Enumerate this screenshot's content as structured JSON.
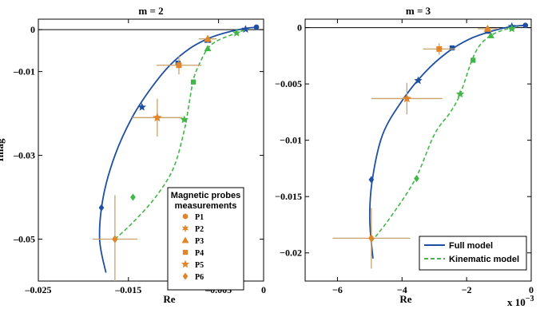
{
  "colors": {
    "full": "#1f4fa3",
    "kinematic": "#43b649",
    "probe": "#e0862a",
    "errorbar": "#c9a36a"
  },
  "chart_data": [
    {
      "type": "line",
      "title": "m = 2",
      "xlabel": "Re",
      "ylabel": "Imag",
      "xlim": [
        -0.025,
        0.0
      ],
      "ylim": [
        -0.06,
        0.0025
      ],
      "xticks": [
        -0.025,
        -0.015,
        -0.005,
        0
      ],
      "xtick_labels": [
        "–0.025",
        "–0.015",
        "–0.005",
        "0"
      ],
      "yticks": [
        0,
        -0.01,
        -0.03,
        -0.05
      ],
      "ytick_labels": [
        "0",
        "–0.01",
        "–0.03",
        "–0.05"
      ],
      "series": [
        {
          "name": "Full model",
          "style": "solid",
          "x": [
            -0.0175,
            -0.0182,
            -0.0178,
            -0.0165,
            -0.0146,
            -0.0125,
            -0.0104,
            -0.0082,
            -0.006,
            -0.0038,
            -0.002,
            -0.0007
          ],
          "y": [
            -0.058,
            -0.05,
            -0.04,
            -0.03,
            -0.021,
            -0.014,
            -0.0085,
            -0.0045,
            -0.002,
            -0.0005,
            0.0003,
            0.0006
          ],
          "markers": [
            {
              "x": -0.018,
              "y": -0.0425,
              "shape": "diamond"
            },
            {
              "x": -0.0135,
              "y": -0.0185,
              "shape": "star"
            },
            {
              "x": -0.0095,
              "y": -0.008,
              "shape": "square"
            },
            {
              "x": -0.0062,
              "y": -0.0025,
              "shape": "triangle"
            },
            {
              "x": -0.002,
              "y": 0.0001,
              "shape": "star"
            },
            {
              "x": -0.0008,
              "y": 0.0006,
              "shape": "circle"
            }
          ]
        },
        {
          "name": "Kinematic model",
          "style": "dashed",
          "x": [
            -0.0165,
            -0.0145,
            -0.012,
            -0.01,
            -0.0088,
            -0.0083,
            -0.0078,
            -0.0072,
            -0.0062,
            -0.005,
            -0.003,
            -0.0018
          ],
          "y": [
            -0.05,
            -0.046,
            -0.04,
            -0.033,
            -0.024,
            -0.018,
            -0.012,
            -0.0085,
            -0.0045,
            -0.0025,
            -0.0008,
            0.0001
          ],
          "markers": [
            {
              "x": -0.0145,
              "y": -0.04,
              "shape": "diamond"
            },
            {
              "x": -0.0088,
              "y": -0.0215,
              "shape": "star"
            },
            {
              "x": -0.0078,
              "y": -0.0125,
              "shape": "square"
            },
            {
              "x": -0.0062,
              "y": -0.0045,
              "shape": "triangle"
            },
            {
              "x": -0.003,
              "y": -0.0008,
              "shape": "star"
            }
          ]
        },
        {
          "name": "Magnetic probes measurements",
          "style": "points",
          "points": [
            {
              "label": "P6",
              "x": -0.0165,
              "y": -0.05,
              "xerr": 0.0025,
              "yerr": 0.0105,
              "shape": "diamond"
            },
            {
              "label": "P5",
              "x": -0.0118,
              "y": -0.021,
              "xerr": 0.0028,
              "yerr": 0.0045,
              "shape": "star"
            },
            {
              "label": "P4",
              "x": -0.0094,
              "y": -0.0085,
              "xerr": 0.0025,
              "yerr": 0.0022,
              "shape": "square"
            },
            {
              "label": "P3",
              "x": -0.0062,
              "y": -0.0022,
              "xerr": 0.001,
              "yerr": 0.0009,
              "shape": "triangle"
            }
          ]
        }
      ],
      "legend": {
        "title_lines": [
          "Magnetic probes",
          "measurements"
        ],
        "items": [
          {
            "label": "P1",
            "shape": "circle"
          },
          {
            "label": "P2",
            "shape": "star6"
          },
          {
            "label": "P3",
            "shape": "triangle"
          },
          {
            "label": "P4",
            "shape": "square"
          },
          {
            "label": "P5",
            "shape": "star"
          },
          {
            "label": "P6",
            "shape": "diamond"
          }
        ],
        "placement": "bottom-right"
      }
    },
    {
      "type": "line",
      "title": "m = 3",
      "xlabel": "Re",
      "xscale_label": "x 10",
      "xscale_exp": "−3",
      "xlim": [
        -7,
        0.0
      ],
      "ylim": [
        -0.0225,
        0.00075
      ],
      "xticks": [
        -6,
        -4,
        -2,
        0
      ],
      "xtick_labels": [
        "−6",
        "−4",
        "−2",
        "0"
      ],
      "yticks": [
        0,
        -0.005,
        -0.01,
        -0.015,
        -0.02
      ],
      "ytick_labels": [
        "0",
        "−0.005",
        "−0.01",
        "−0.015",
        "−0.02"
      ],
      "series": [
        {
          "name": "Full model",
          "style": "solid",
          "x": [
            -4.9,
            -5.0,
            -4.92,
            -4.6,
            -4.0,
            -3.3,
            -2.6,
            -1.9,
            -1.2,
            -0.6,
            -0.15
          ],
          "y": [
            -0.0205,
            -0.017,
            -0.0135,
            -0.0095,
            -0.0065,
            -0.004,
            -0.0022,
            -0.001,
            -0.0003,
            0.0001,
            0.0002
          ],
          "markers": [
            {
              "x": -4.95,
              "y": -0.0135,
              "shape": "diamond"
            },
            {
              "x": -3.5,
              "y": -0.0047,
              "shape": "star"
            },
            {
              "x": -2.45,
              "y": -0.0018,
              "shape": "square"
            },
            {
              "x": -1.35,
              "y": -0.0003,
              "shape": "triangle"
            },
            {
              "x": -0.6,
              "y": 0.0001,
              "shape": "star"
            },
            {
              "x": -0.18,
              "y": 0.0002,
              "shape": "circle"
            }
          ]
        },
        {
          "name": "Kinematic model",
          "style": "dashed",
          "x": [
            -4.95,
            -4.4,
            -3.6,
            -3.0,
            -2.5,
            -2.2,
            -1.85,
            -1.6,
            -1.25,
            -0.85,
            -0.4
          ],
          "y": [
            -0.019,
            -0.017,
            -0.0135,
            -0.0095,
            -0.0075,
            -0.0059,
            -0.003,
            -0.0016,
            -0.0007,
            -0.0002,
            0.0001
          ],
          "markers": [
            {
              "x": -3.55,
              "y": -0.0134,
              "shape": "diamond"
            },
            {
              "x": -2.2,
              "y": -0.0059,
              "shape": "star"
            },
            {
              "x": -1.8,
              "y": -0.0029,
              "shape": "square"
            },
            {
              "x": -1.25,
              "y": -0.0007,
              "shape": "triangle"
            },
            {
              "x": -0.6,
              "y": -0.0001,
              "shape": "star"
            }
          ]
        },
        {
          "name": "Magnetic probes measurements",
          "style": "points",
          "points": [
            {
              "label": "P6",
              "x": -4.95,
              "y": -0.0187,
              "xerr": 1.2,
              "yerr": 0.0027,
              "shape": "diamond"
            },
            {
              "label": "P5",
              "x": -3.85,
              "y": -0.0063,
              "xerr": 1.1,
              "yerr": 0.0014,
              "shape": "star"
            },
            {
              "label": "P4",
              "x": -2.85,
              "y": -0.0019,
              "xerr": 0.5,
              "yerr": 0.0005,
              "shape": "square"
            },
            {
              "label": "P3",
              "x": -1.35,
              "y": -0.0001,
              "xerr": 0.3,
              "yerr": 0.0002,
              "shape": "triangle"
            }
          ]
        }
      ],
      "legend": {
        "items": [
          {
            "label": "Full model",
            "style": "solid"
          },
          {
            "label": "Kinematic model",
            "style": "dashed"
          }
        ],
        "placement": "bottom-right"
      }
    }
  ]
}
